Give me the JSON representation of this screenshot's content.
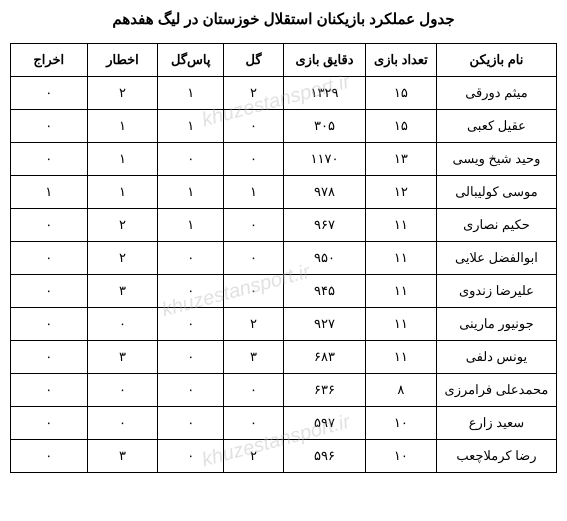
{
  "title": "جدول عملکرد بازیکنان استقلال خوزستان در لیگ هفدهم",
  "watermark_text": "khuzestansport.ir",
  "columns": {
    "name": "نام بازیکن",
    "games": "تعداد بازی",
    "minutes": "دقایق بازی",
    "goals": "گل",
    "assists": "پاس‌گل",
    "yellow": "اخطار",
    "red": "اخراج"
  },
  "rows": [
    {
      "name": "میثم دورقی",
      "games": "۱۵",
      "minutes": "۱۳۲۹",
      "goals": "۲",
      "assists": "۱",
      "yellow": "۲",
      "red": "۰"
    },
    {
      "name": "عقیل کعبی",
      "games": "۱۵",
      "minutes": "۳۰۵",
      "goals": "۰",
      "assists": "۱",
      "yellow": "۱",
      "red": "۰"
    },
    {
      "name": "وحید شیخ ویسی",
      "games": "۱۳",
      "minutes": "۱۱۷۰",
      "goals": "۰",
      "assists": "۰",
      "yellow": "۱",
      "red": "۰"
    },
    {
      "name": "موسی کولیبالی",
      "games": "۱۲",
      "minutes": "۹۷۸",
      "goals": "۱",
      "assists": "۱",
      "yellow": "۱",
      "red": "۱"
    },
    {
      "name": "حکیم نصاری",
      "games": "۱۱",
      "minutes": "۹۶۷",
      "goals": "۰",
      "assists": "۱",
      "yellow": "۲",
      "red": "۰"
    },
    {
      "name": "ابوالفضل علایی",
      "games": "۱۱",
      "minutes": "۹۵۰",
      "goals": "۰",
      "assists": "۰",
      "yellow": "۲",
      "red": "۰"
    },
    {
      "name": "علیرضا زندوی",
      "games": "۱۱",
      "minutes": "۹۴۵",
      "goals": "۰",
      "assists": "۰",
      "yellow": "۳",
      "red": "۰"
    },
    {
      "name": "جونیور مارینی",
      "games": "۱۱",
      "minutes": "۹۲۷",
      "goals": "۲",
      "assists": "۰",
      "yellow": "۰",
      "red": "۰"
    },
    {
      "name": "یونس دلفی",
      "games": "۱۱",
      "minutes": "۶۸۳",
      "goals": "۳",
      "assists": "۰",
      "yellow": "۳",
      "red": "۰"
    },
    {
      "name": "محمدعلی فرامرزی",
      "games": "۸",
      "minutes": "۶۳۶",
      "goals": "۰",
      "assists": "۰",
      "yellow": "۰",
      "red": "۰"
    },
    {
      "name": "سعید زارع",
      "games": "۱۰",
      "minutes": "۵۹۷",
      "goals": "۰",
      "assists": "۰",
      "yellow": "۰",
      "red": "۰"
    },
    {
      "name": "رضا کرملاچعب",
      "games": "۱۰",
      "minutes": "۵۹۶",
      "goals": "۲",
      "assists": "۰",
      "yellow": "۳",
      "red": "۰"
    }
  ]
}
